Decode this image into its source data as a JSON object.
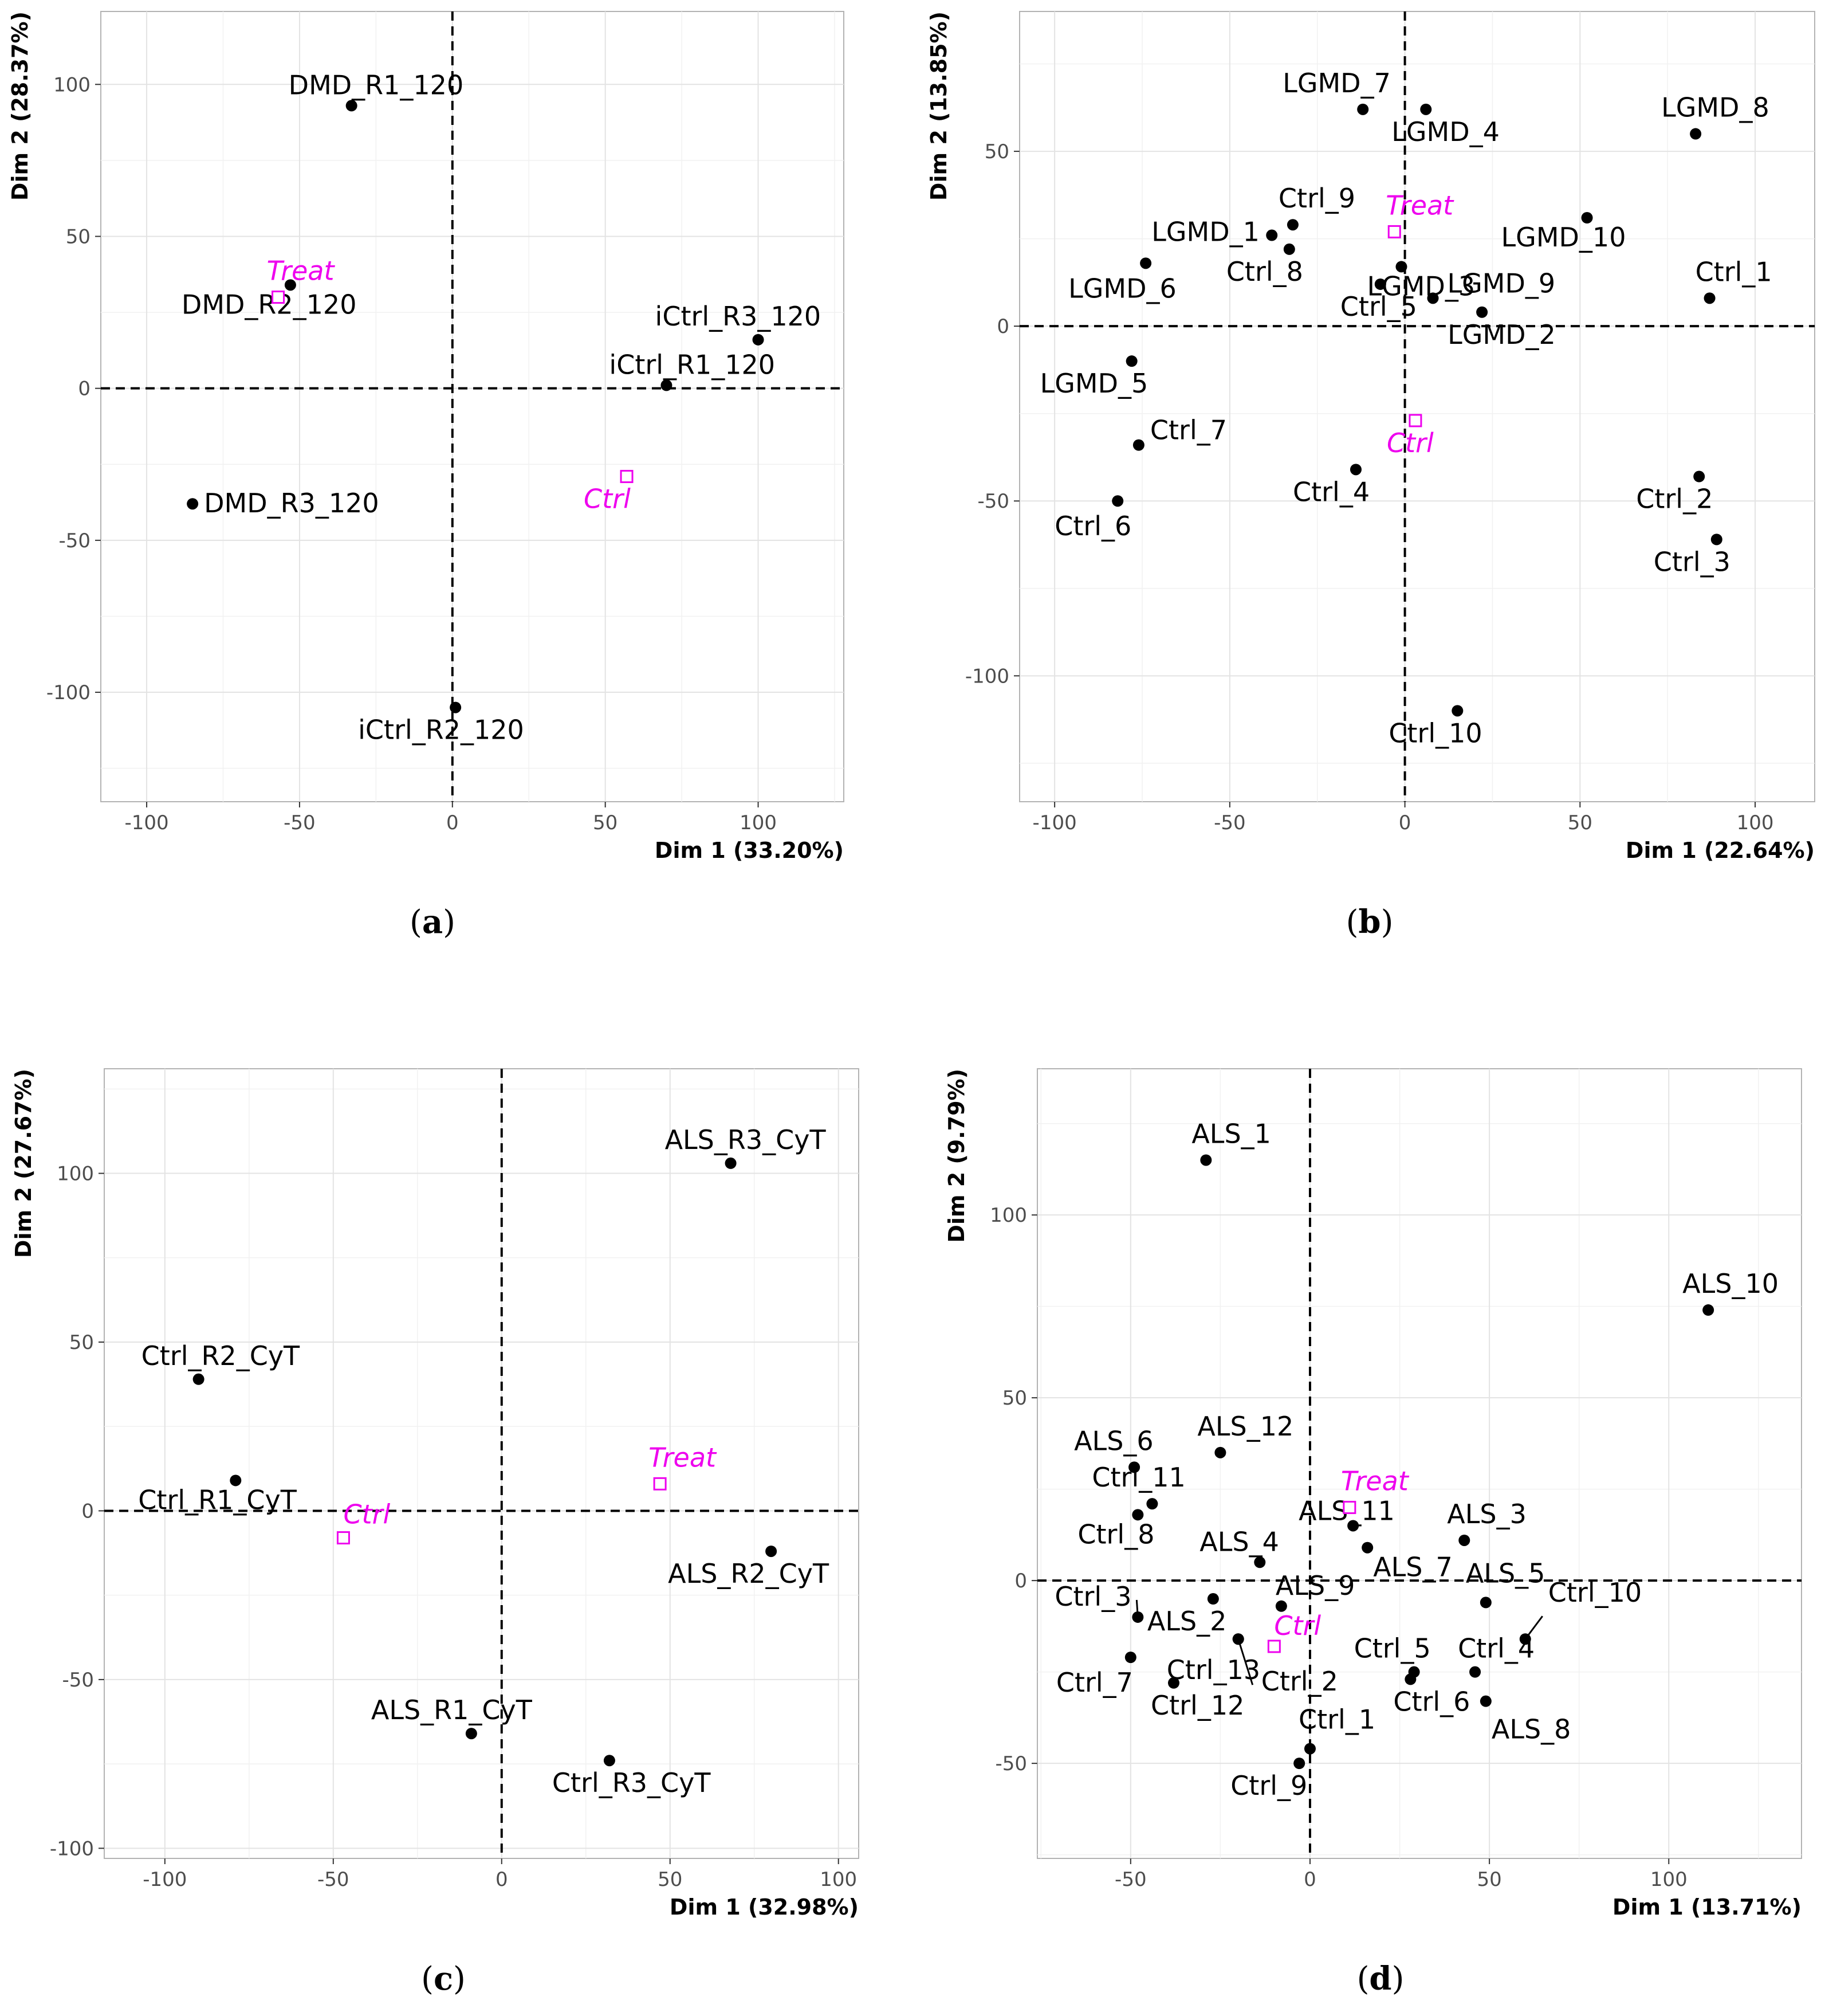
{
  "colors": {
    "point": "#000000",
    "supplementary": "#ee00ee",
    "panel_border": "#b3b3b3",
    "grid": "#e3e3e3"
  },
  "chart_data": [
    {
      "type": "scatter",
      "caption_letter": "a",
      "xlabel": "Dim 1 (33.20%)",
      "ylabel": "Dim 2 (28.37%)",
      "xlim": [
        -115,
        128
      ],
      "ylim": [
        -136,
        124
      ],
      "xticks": [
        -100,
        -50,
        0,
        50,
        100
      ],
      "yticks": [
        -100,
        -50,
        0,
        50,
        100
      ],
      "points": [
        {
          "label": "DMD_R1_120",
          "x": -33,
          "y": 93
        },
        {
          "label": "DMD_R2_120",
          "x": -53,
          "y": 34
        },
        {
          "label": "DMD_R3_120",
          "x": -85,
          "y": -38
        },
        {
          "label": "iCtrl_R1_120",
          "x": 70,
          "y": 1
        },
        {
          "label": "iCtrl_R2_120",
          "x": 1,
          "y": -105
        },
        {
          "label": "iCtrl_R3_120",
          "x": 100,
          "y": 16
        }
      ],
      "supplementary": [
        {
          "label": "Treat",
          "x": -57,
          "y": 30
        },
        {
          "label": "Ctrl",
          "x": 57,
          "y": -29
        }
      ]
    },
    {
      "type": "scatter",
      "caption_letter": "b",
      "xlabel": "Dim 1 (22.64%)",
      "ylabel": "Dim 2 (13.85%)",
      "xlim": [
        -110,
        117
      ],
      "ylim": [
        -136,
        90
      ],
      "xticks": [
        -100,
        -50,
        0,
        50,
        100
      ],
      "yticks": [
        -100,
        -50,
        0,
        50
      ],
      "points": [
        {
          "label": "LGMD_7",
          "x": -12,
          "y": 62
        },
        {
          "label": "LGMD_4",
          "x": 6,
          "y": 62
        },
        {
          "label": "LGMD_8",
          "x": 83,
          "y": 55
        },
        {
          "label": "Ctrl_9",
          "x": -32,
          "y": 29
        },
        {
          "label": "LGMD_1",
          "x": -38,
          "y": 26
        },
        {
          "label": "Ctrl_8",
          "x": -33,
          "y": 22
        },
        {
          "label": "LGMD_10",
          "x": 52,
          "y": 31
        },
        {
          "label": "LGMD_6",
          "x": -74,
          "y": 18
        },
        {
          "label": "LGMD_3",
          "x": -1,
          "y": 17
        },
        {
          "label": "Ctrl_5",
          "x": -7,
          "y": 12
        },
        {
          "label": "LGMD_9",
          "x": 8,
          "y": 8
        },
        {
          "label": "LGMD_2",
          "x": 22,
          "y": 4
        },
        {
          "label": "Ctrl_1",
          "x": 87,
          "y": 8
        },
        {
          "label": "LGMD_5",
          "x": -78,
          "y": -10
        },
        {
          "label": "Ctrl_7",
          "x": -76,
          "y": -34
        },
        {
          "label": "Ctrl_4",
          "x": -14,
          "y": -41
        },
        {
          "label": "Ctrl_6",
          "x": -82,
          "y": -50
        },
        {
          "label": "Ctrl_2",
          "x": 84,
          "y": -43
        },
        {
          "label": "Ctrl_3",
          "x": 89,
          "y": -61
        },
        {
          "label": "Ctrl_10",
          "x": 15,
          "y": -110
        }
      ],
      "supplementary": [
        {
          "label": "Treat",
          "x": -3,
          "y": 27
        },
        {
          "label": "Ctrl",
          "x": 3,
          "y": -27
        }
      ]
    },
    {
      "type": "scatter",
      "caption_letter": "c",
      "xlabel": "Dim 1 (32.98%)",
      "ylabel": "Dim 2 (27.67%)",
      "xlim": [
        -118,
        106
      ],
      "ylim": [
        -103,
        131
      ],
      "xticks": [
        -100,
        -50,
        0,
        50,
        100
      ],
      "yticks": [
        -100,
        -50,
        0,
        50,
        100
      ],
      "points": [
        {
          "label": "ALS_R3_CyT",
          "x": 68,
          "y": 103
        },
        {
          "label": "Ctrl_R2_CyT",
          "x": -90,
          "y": 39
        },
        {
          "label": "Ctrl_R1_CyT",
          "x": -79,
          "y": 9
        },
        {
          "label": "ALS_R2_CyT",
          "x": 80,
          "y": -12
        },
        {
          "label": "ALS_R1_CyT",
          "x": -9,
          "y": -66
        },
        {
          "label": "Ctrl_R3_CyT",
          "x": 32,
          "y": -74
        }
      ],
      "supplementary": [
        {
          "label": "Treat",
          "x": 47,
          "y": 8
        },
        {
          "label": "Ctrl",
          "x": -47,
          "y": -8
        }
      ]
    },
    {
      "type": "scatter",
      "caption_letter": "d",
      "xlabel": "Dim 1 (13.71%)",
      "ylabel": "Dim 2 (9.79%)",
      "xlim": [
        -76,
        137
      ],
      "ylim": [
        -76,
        140
      ],
      "xticks": [
        -50,
        0,
        50,
        100
      ],
      "yticks": [
        -50,
        0,
        50,
        100
      ],
      "points": [
        {
          "label": "ALS_1",
          "x": -29,
          "y": 115
        },
        {
          "label": "ALS_10",
          "x": 111,
          "y": 74
        },
        {
          "label": "ALS_12",
          "x": -25,
          "y": 35
        },
        {
          "label": "ALS_6",
          "x": -49,
          "y": 31
        },
        {
          "label": "Ctrl_11",
          "x": -44,
          "y": 21
        },
        {
          "label": "Ctrl_8",
          "x": -48,
          "y": 18
        },
        {
          "label": "ALS_11",
          "x": 12,
          "y": 15
        },
        {
          "label": "ALS_4",
          "x": -14,
          "y": 5
        },
        {
          "label": "ALS_7",
          "x": 16,
          "y": 9
        },
        {
          "label": "ALS_3",
          "x": 43,
          "y": 11
        },
        {
          "label": "ALS_5",
          "x": 49,
          "y": -6
        },
        {
          "label": "ALS_9",
          "x": -8,
          "y": -7
        },
        {
          "label": "Ctrl_3",
          "x": -48,
          "y": -10
        },
        {
          "label": "ALS_2",
          "x": -27,
          "y": -5
        },
        {
          "label": "Ctrl_13",
          "x": -20,
          "y": -16
        },
        {
          "label": "Ctrl_2",
          "x": -20,
          "y": -16
        },
        {
          "label": "Ctrl_7",
          "x": -50,
          "y": -21
        },
        {
          "label": "Ctrl_12",
          "x": -38,
          "y": -28
        },
        {
          "label": "Ctrl_5",
          "x": 29,
          "y": -25
        },
        {
          "label": "Ctrl_6",
          "x": 28,
          "y": -27
        },
        {
          "label": "Ctrl_4",
          "x": 46,
          "y": -25
        },
        {
          "label": "Ctrl_10",
          "x": 60,
          "y": -16
        },
        {
          "label": "ALS_8",
          "x": 49,
          "y": -33
        },
        {
          "label": "Ctrl_1",
          "x": 0,
          "y": -46
        },
        {
          "label": "Ctrl_9",
          "x": -3,
          "y": -50
        }
      ],
      "supplementary": [
        {
          "label": "Treat",
          "x": 11,
          "y": 20
        },
        {
          "label": "Ctrl",
          "x": -10,
          "y": -18
        }
      ]
    }
  ]
}
